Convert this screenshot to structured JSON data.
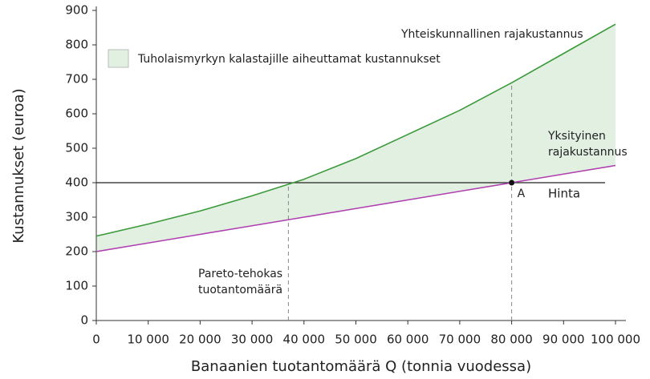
{
  "chart_data": {
    "type": "line",
    "xlabel": "Banaanien tuotantomäärä Q (tonnia vuodessa)",
    "ylabel": "Kustannukset (euroa)",
    "x": [
      0,
      10000,
      20000,
      30000,
      40000,
      50000,
      60000,
      70000,
      80000,
      90000,
      100000
    ],
    "series": [
      {
        "name": "Yhteiskunnallinen rajakustannus",
        "color": "#3a9a3a",
        "values": [
          245,
          280,
          318,
          362,
          410,
          470,
          540,
          610,
          690,
          775,
          860
        ]
      },
      {
        "name": "Yksityinen rajakustannus",
        "color": "#b040b0",
        "values": [
          200,
          225,
          250,
          275,
          300,
          325,
          350,
          375,
          400,
          425,
          450
        ]
      }
    ],
    "area": {
      "label": "Tuholaismyrkyn kalastajille aiheuttamat kustannukset",
      "color": "#e2f0e2"
    },
    "price": {
      "value": 400,
      "label": "Hinta",
      "xmax": 98000
    },
    "pareto": {
      "x": 37000,
      "label": "Pareto-tehokas tuotantomäärä"
    },
    "point": {
      "x": 80000,
      "y": 400,
      "label": "A"
    },
    "xlim": [
      0,
      100000
    ],
    "ylim": [
      0,
      900
    ],
    "xticks": [
      0,
      {
        "value": 10000,
        "label": "10 000"
      },
      {
        "value": 20000,
        "label": "20 000"
      },
      {
        "value": 30000,
        "label": "30 000"
      },
      {
        "value": 40000,
        "label": "40 000"
      },
      {
        "value": 50000,
        "label": "50 000"
      },
      {
        "value": 60000,
        "label": "60 000"
      },
      {
        "value": 70000,
        "label": "70 000"
      },
      {
        "value": 80000,
        "label": "80 000"
      },
      {
        "value": 90000,
        "label": "90 000"
      },
      {
        "value": 100000,
        "label": "100 000"
      }
    ],
    "yticks": [
      0,
      100,
      200,
      300,
      400,
      500,
      600,
      700,
      800,
      900
    ]
  }
}
